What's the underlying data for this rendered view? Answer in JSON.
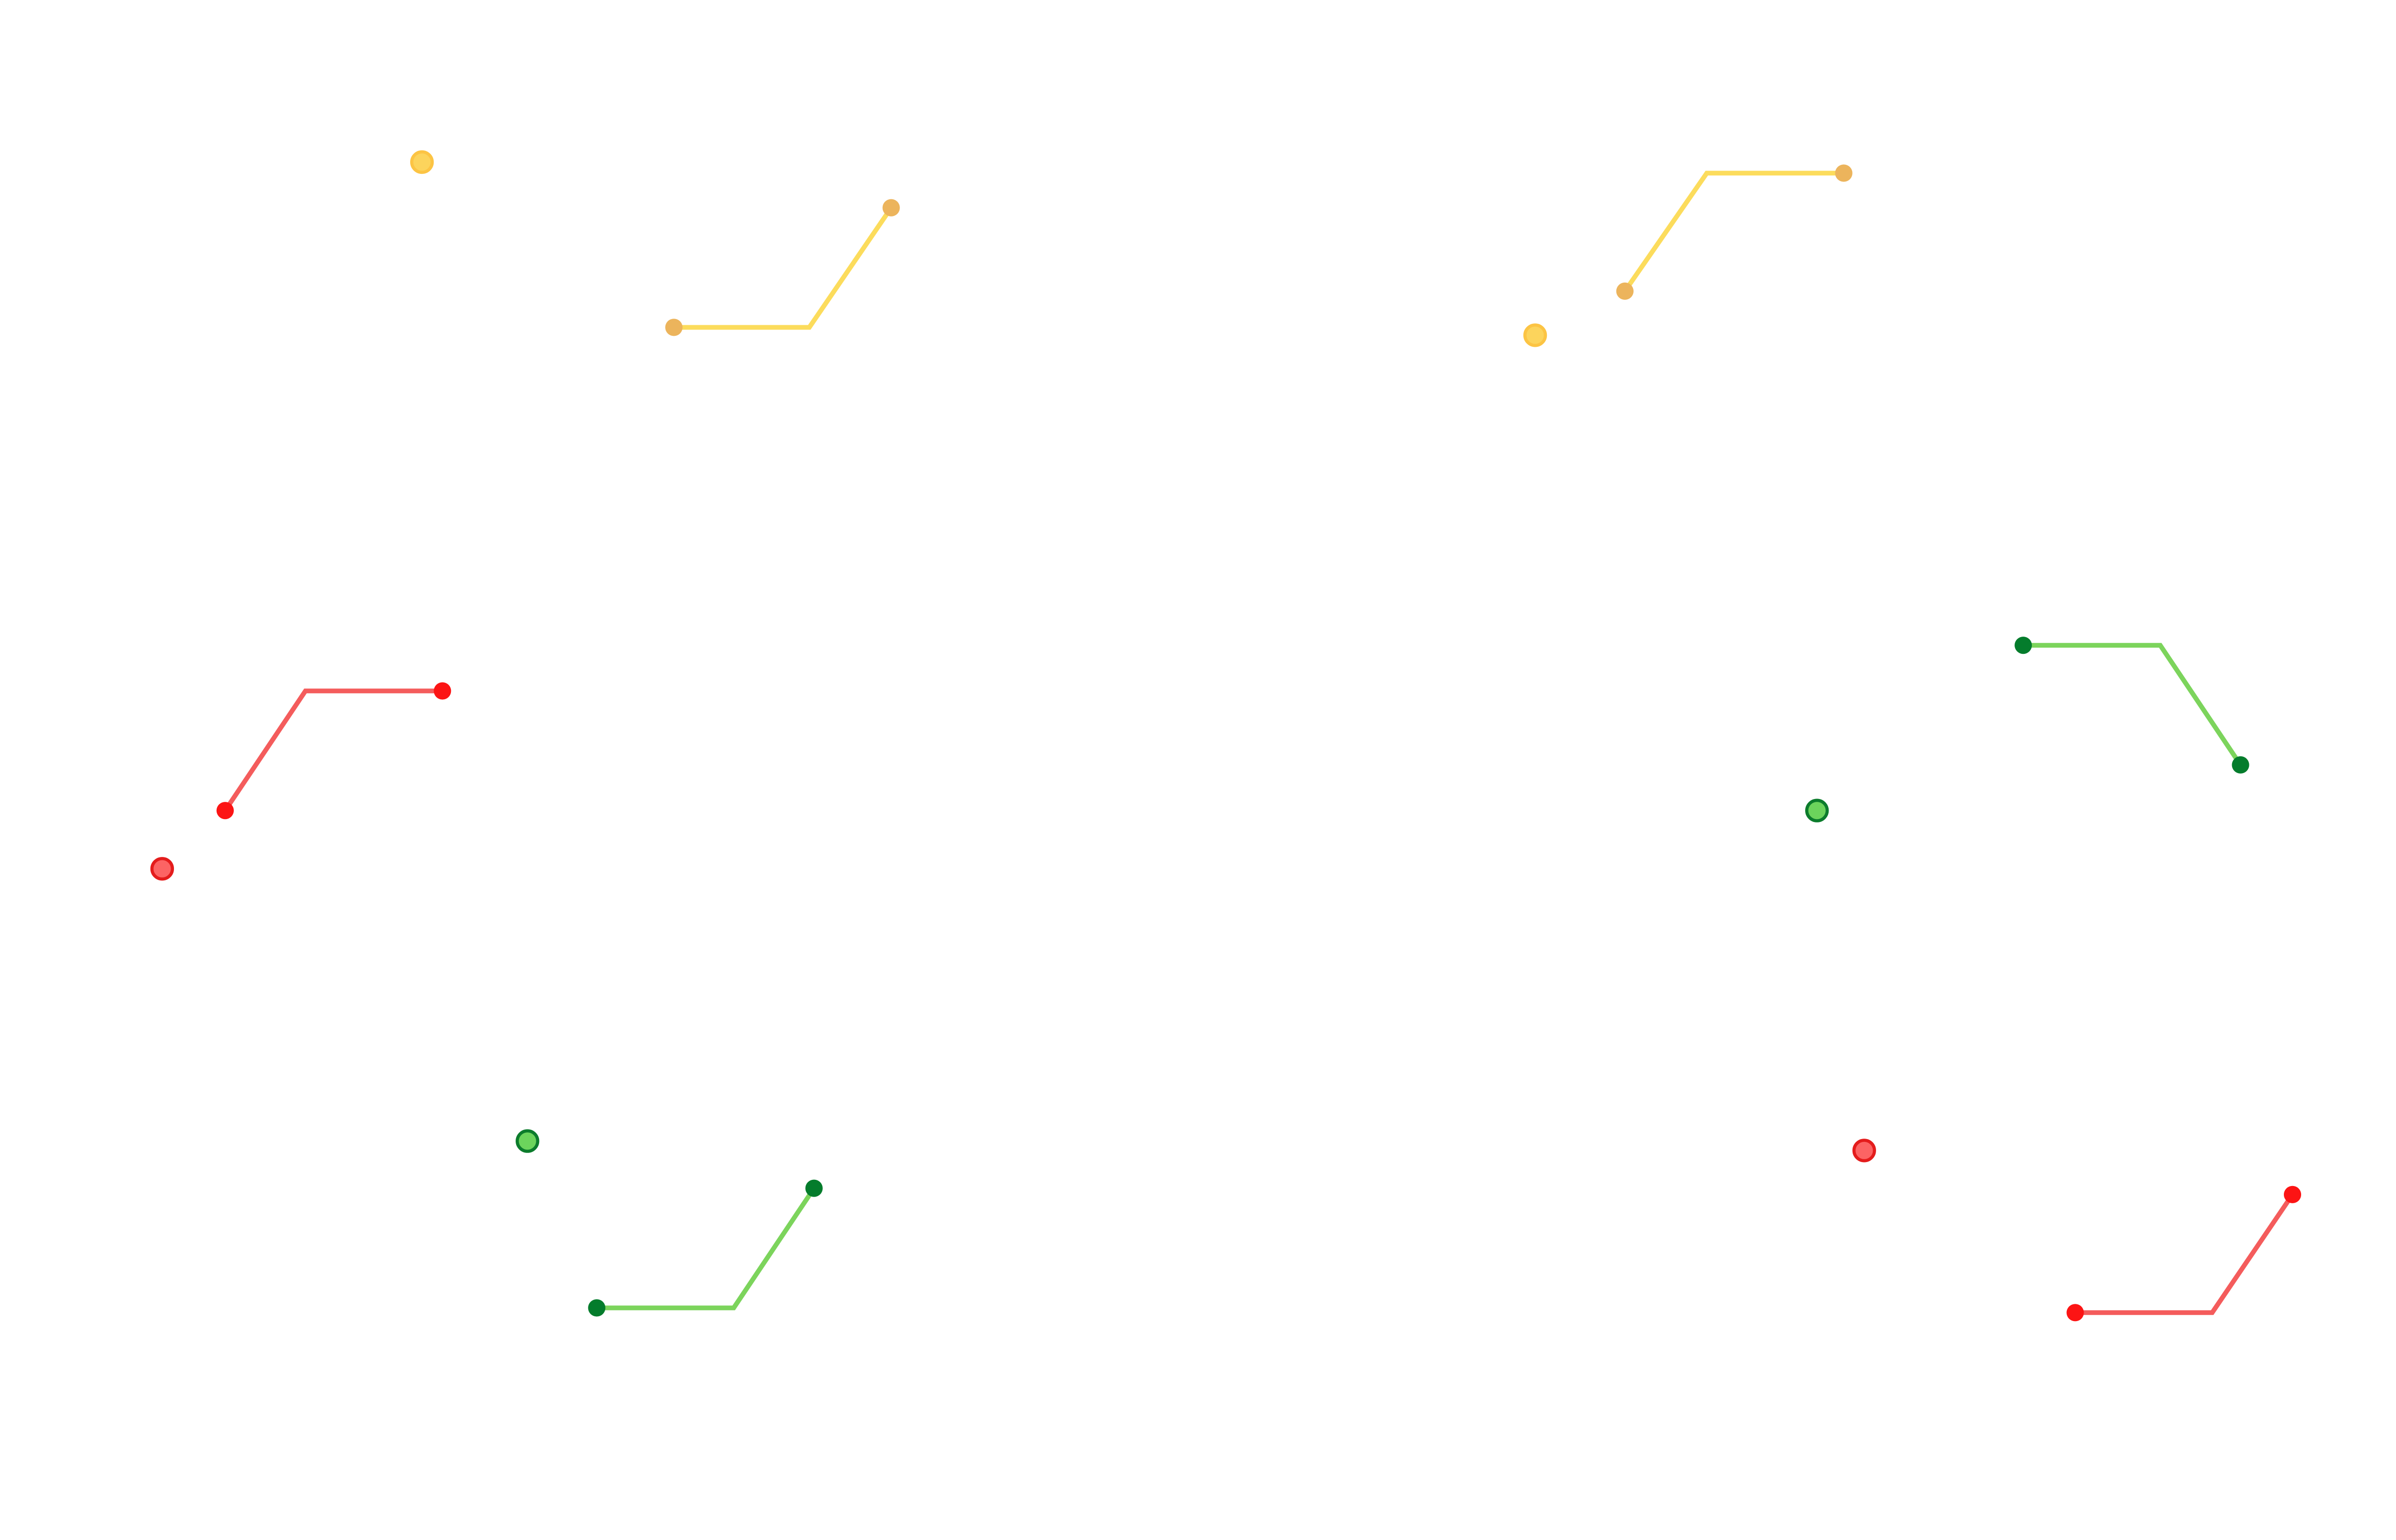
{
  "colors": {
    "background": "#ffffff",
    "yellow": {
      "line": "#fcdc5c",
      "endpoint": "#ecb45c",
      "marker_fill": "#fcd45c",
      "marker_stroke": "#fcc444"
    },
    "red": {
      "line": "#f45c5c",
      "endpoint": "#fc1414",
      "marker_fill": "#fc6464",
      "marker_stroke": "#e41c1c"
    },
    "green": {
      "line": "#7cd45c",
      "endpoint": "#047c2c",
      "marker_fill": "#6cd45c",
      "marker_stroke": "#0c7c2c"
    }
  },
  "groups": [
    {
      "id": "group-yellow-top-left",
      "color": "yellow"
    },
    {
      "id": "group-yellow-top-right",
      "color": "yellow"
    },
    {
      "id": "group-red-middle-left",
      "color": "red"
    },
    {
      "id": "group-green-middle-right",
      "color": "green"
    },
    {
      "id": "group-green-bottom-left",
      "color": "green"
    },
    {
      "id": "group-red-bottom-right",
      "color": "red"
    }
  ]
}
